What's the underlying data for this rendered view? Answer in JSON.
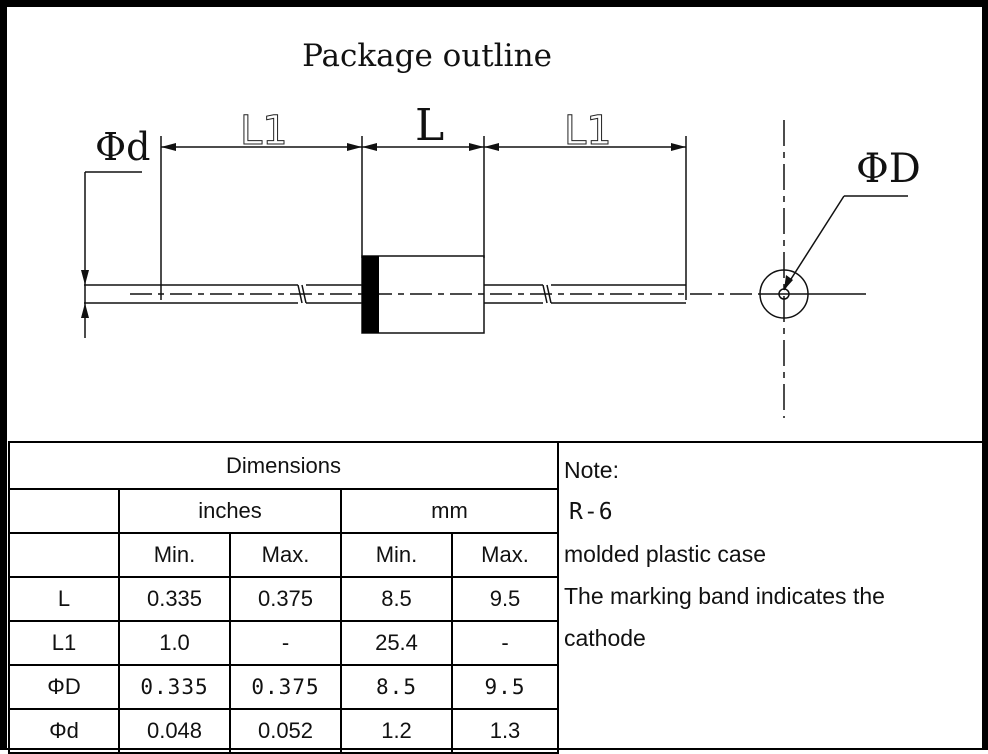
{
  "drawing": {
    "title": "Package outline",
    "dim_labels": {
      "lead_diameter": "Φd",
      "lead_length_left": "L1",
      "body_length": "L",
      "lead_length_right": "L1",
      "body_diameter": "ΦD"
    }
  },
  "table": {
    "title": "Dimensions",
    "unit_headers": [
      "inches",
      "mm"
    ],
    "col_headers": [
      "Min.",
      "Max.",
      "Min.",
      "Max."
    ],
    "rows": [
      {
        "label": "L",
        "values": [
          "0.335",
          "0.375",
          "8.5",
          "9.5"
        ]
      },
      {
        "label": "L1",
        "values": [
          "1.0",
          "-",
          "25.4",
          "-"
        ]
      },
      {
        "label": "ΦD",
        "values": [
          "0.335",
          "0.375",
          "8.5",
          "9.5"
        ]
      },
      {
        "label": "Φd",
        "values": [
          "0.048",
          "0.052",
          "1.2",
          "1.3"
        ]
      }
    ]
  },
  "note": {
    "heading": "Note:",
    "package_code": "R-6",
    "lines": [
      "molded plastic case",
      "The marking band indicates the",
      "cathode"
    ]
  },
  "colors": {
    "ink": "#111111",
    "band": "#000000",
    "paper": "#ffffff"
  }
}
